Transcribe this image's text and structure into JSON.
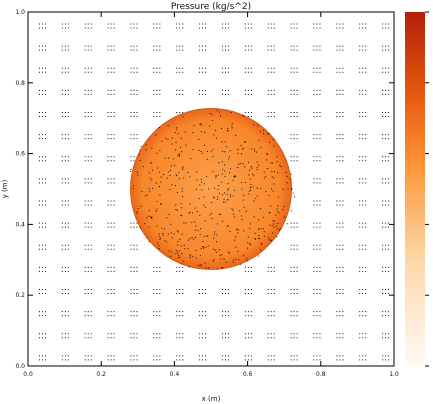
{
  "chart_data": {
    "type": "heatmap",
    "title": "Pressure (kg/s^2)",
    "xlabel": "x (m)",
    "ylabel": "y (m)",
    "xlim": [
      0.0,
      1.0
    ],
    "ylim": [
      0.0,
      1.0
    ],
    "x_ticks": [
      "0.0",
      "0.2",
      "0.4",
      "0.6",
      "0.8",
      "1.0"
    ],
    "y_ticks": [
      "0.0",
      "0.2",
      "0.4",
      "0.6",
      "0.8",
      "1.0"
    ],
    "field": {
      "background_level": 0.0,
      "disk_center": [
        0.5,
        0.5
      ],
      "disk_radius": 0.22,
      "disk_level": 0.6
    },
    "colorbar": {
      "colors": [
        "#fffaf3",
        "#fdd7a8",
        "#fd9a3c",
        "#e6550d",
        "#b3200b"
      ],
      "range": [
        0.0,
        1.0
      ]
    },
    "particles": {
      "color": "#111111",
      "grid_spacing": 0.025,
      "cluster_size": 3
    }
  }
}
